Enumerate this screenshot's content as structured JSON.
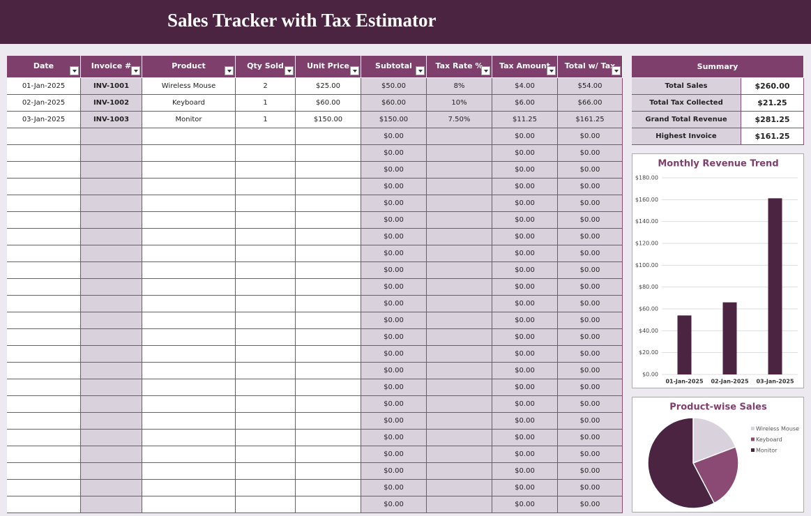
{
  "header": {
    "title": "Sales Tracker with Tax Estimator"
  },
  "table": {
    "columns": [
      "Date",
      "Invoice #",
      "Product",
      "Qty Sold",
      "Unit Price",
      "Subtotal",
      "Tax Rate %",
      "Tax Amount",
      "Total w/ Tax"
    ],
    "rows": [
      [
        "01-Jan-2025",
        "INV-1001",
        "Wireless Mouse",
        "2",
        "$25.00",
        "$50.00",
        "8%",
        "$4.00",
        "$54.00"
      ],
      [
        "02-Jan-2025",
        "INV-1002",
        "Keyboard",
        "1",
        "$60.00",
        "$60.00",
        "10%",
        "$6.00",
        "$66.00"
      ],
      [
        "03-Jan-2025",
        "INV-1003",
        "Monitor",
        "1",
        "$150.00",
        "$150.00",
        "7.50%",
        "$11.25",
        "$161.25"
      ],
      [
        null,
        null,
        null,
        null,
        null,
        "$0.00",
        null,
        "$0.00",
        "$0.00"
      ],
      [
        null,
        null,
        null,
        null,
        null,
        "$0.00",
        null,
        "$0.00",
        "$0.00"
      ],
      [
        null,
        null,
        null,
        null,
        null,
        "$0.00",
        null,
        "$0.00",
        "$0.00"
      ],
      [
        null,
        null,
        null,
        null,
        null,
        "$0.00",
        null,
        "$0.00",
        "$0.00"
      ],
      [
        null,
        null,
        null,
        null,
        null,
        "$0.00",
        null,
        "$0.00",
        "$0.00"
      ],
      [
        null,
        null,
        null,
        null,
        null,
        "$0.00",
        null,
        "$0.00",
        "$0.00"
      ],
      [
        null,
        null,
        null,
        null,
        null,
        "$0.00",
        null,
        "$0.00",
        "$0.00"
      ],
      [
        null,
        null,
        null,
        null,
        null,
        "$0.00",
        null,
        "$0.00",
        "$0.00"
      ],
      [
        null,
        null,
        null,
        null,
        null,
        "$0.00",
        null,
        "$0.00",
        "$0.00"
      ],
      [
        null,
        null,
        null,
        null,
        null,
        "$0.00",
        null,
        "$0.00",
        "$0.00"
      ],
      [
        null,
        null,
        null,
        null,
        null,
        "$0.00",
        null,
        "$0.00",
        "$0.00"
      ],
      [
        null,
        null,
        null,
        null,
        null,
        "$0.00",
        null,
        "$0.00",
        "$0.00"
      ],
      [
        null,
        null,
        null,
        null,
        null,
        "$0.00",
        null,
        "$0.00",
        "$0.00"
      ],
      [
        null,
        null,
        null,
        null,
        null,
        "$0.00",
        null,
        "$0.00",
        "$0.00"
      ],
      [
        null,
        null,
        null,
        null,
        null,
        "$0.00",
        null,
        "$0.00",
        "$0.00"
      ],
      [
        null,
        null,
        null,
        null,
        null,
        "$0.00",
        null,
        "$0.00",
        "$0.00"
      ],
      [
        null,
        null,
        null,
        null,
        null,
        "$0.00",
        null,
        "$0.00",
        "$0.00"
      ],
      [
        null,
        null,
        null,
        null,
        null,
        "$0.00",
        null,
        "$0.00",
        "$0.00"
      ],
      [
        null,
        null,
        null,
        null,
        null,
        "$0.00",
        null,
        "$0.00",
        "$0.00"
      ],
      [
        null,
        null,
        null,
        null,
        null,
        "$0.00",
        null,
        "$0.00",
        "$0.00"
      ],
      [
        null,
        null,
        null,
        null,
        null,
        "$0.00",
        null,
        "$0.00",
        "$0.00"
      ],
      [
        null,
        null,
        null,
        null,
        null,
        "$0.00",
        null,
        "$0.00",
        "$0.00"
      ],
      [
        null,
        null,
        null,
        null,
        null,
        "$0.00",
        null,
        "$0.00",
        "$0.00"
      ]
    ]
  },
  "summary": {
    "title": "Summary",
    "rows": [
      [
        "Total Sales",
        "$260.00"
      ],
      [
        "Total Tax Collected",
        "$21.25"
      ],
      [
        "Grand Total Revenue",
        "$281.25"
      ],
      [
        "Highest Invoice",
        "$161.25"
      ]
    ]
  },
  "chart_data": [
    {
      "type": "bar",
      "title": "Monthly Revenue Trend",
      "categories": [
        "01-Jan-2025",
        "02-Jan-2025",
        "03-Jan-2025"
      ],
      "values": [
        54,
        66,
        161.25
      ],
      "color": "#4a2440",
      "grid": true,
      "ylim": [
        0,
        180
      ],
      "yticks": [
        {
          "value": 0,
          "label": "$0.00"
        },
        {
          "value": 20,
          "label": "$20.00"
        },
        {
          "value": 40,
          "label": "$40.00"
        },
        {
          "value": 60,
          "label": "$60.00"
        },
        {
          "value": 80,
          "label": "$80.00"
        },
        {
          "value": 100,
          "label": "$100.00"
        },
        {
          "value": 120,
          "label": "$120.00"
        },
        {
          "value": 140,
          "label": "$140.00"
        },
        {
          "value": 160,
          "label": "$160.00"
        },
        {
          "value": 180,
          "label": "$180.00"
        }
      ]
    },
    {
      "type": "pie",
      "title": "Product-wise Sales",
      "categories": [
        "Wireless Mouse",
        "Keyboard",
        "Monitor"
      ],
      "values": [
        50,
        60,
        150
      ],
      "colors": [
        "#d9d1dc",
        "#8b4a74",
        "#4a2440"
      ]
    }
  ]
}
